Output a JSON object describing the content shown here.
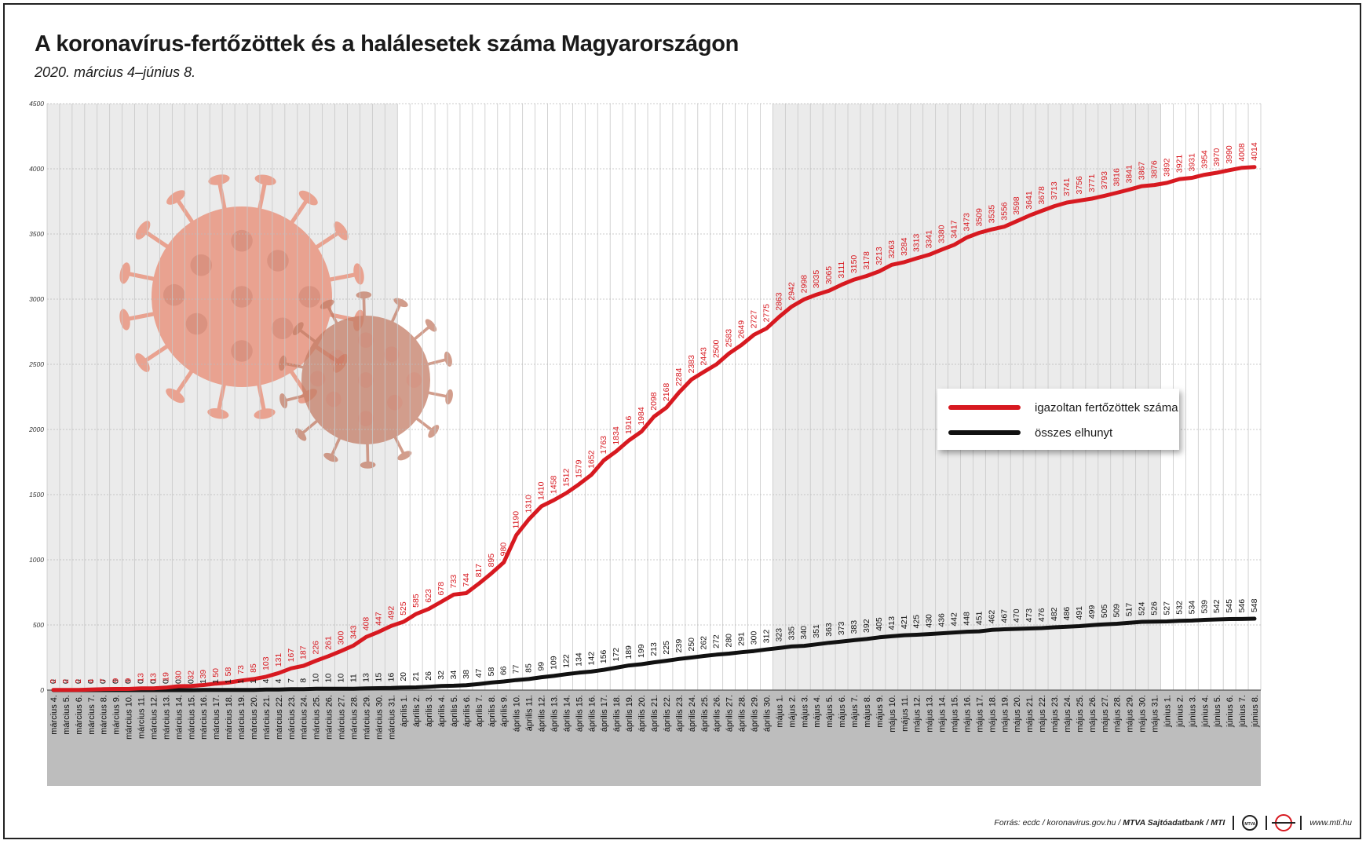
{
  "title": "A koronavírus-fertőzöttek és a halálesetek száma Magyarországon",
  "subtitle": "2020. március 4–június 8.",
  "legend": {
    "infected_label": "igazoltan fertőzöttek száma",
    "deaths_label": "összes elhunyt"
  },
  "footer": {
    "source": "Forrás: ecdc / koronavirus.gov.hu / ",
    "source_bold": "MTVA Sajtóadatbank / MTI",
    "logo1": "MTVA",
    "website": "www.mti.hu"
  },
  "colors": {
    "infected": "#d71920",
    "deaths": "#111111",
    "virus": "#e9917a",
    "shade": "#ebebeb",
    "xband": "#bdbdbd"
  },
  "chart_data": {
    "type": "line",
    "ylim": [
      0,
      4500
    ],
    "yticks": [
      "0",
      "500",
      "1000",
      "1500",
      "2000",
      "2500",
      "3000",
      "3500",
      "4000",
      "4500"
    ],
    "grid": true,
    "categories": [
      "március 4.",
      "március 5.",
      "március 6.",
      "március 7.",
      "március 8.",
      "március 9.",
      "március 10.",
      "március 11.",
      "március 12.",
      "március 13.",
      "március 14.",
      "március 15.",
      "március 16.",
      "március 17.",
      "március 18.",
      "március 19.",
      "március 20.",
      "március 21.",
      "március 22.",
      "március 23.",
      "március 24.",
      "március 25.",
      "március 26.",
      "március 27.",
      "március 28.",
      "március 29.",
      "március 30.",
      "március 31.",
      "április 1.",
      "április 2.",
      "április 3.",
      "április 4.",
      "április 5.",
      "április 6.",
      "április 7.",
      "április 8.",
      "április 9.",
      "április 10.",
      "április 11.",
      "április 12.",
      "április 13.",
      "április 14.",
      "április 15.",
      "április 16.",
      "április 17.",
      "április 18.",
      "április 19.",
      "április 20.",
      "április 21.",
      "április 22.",
      "április 23.",
      "április 24.",
      "április 25.",
      "április 26.",
      "április 27.",
      "április 28.",
      "április 29.",
      "április 30.",
      "május 1.",
      "május 2.",
      "május 3.",
      "május 4.",
      "május 5.",
      "május 6.",
      "május 7.",
      "május 8.",
      "május 9.",
      "május 10.",
      "május 11.",
      "május 12.",
      "május 13.",
      "május 14.",
      "május 15.",
      "május 16.",
      "május 17.",
      "május 18.",
      "május 19.",
      "május 20.",
      "május 21.",
      "május 22.",
      "május 23.",
      "május 24.",
      "május 25.",
      "május 26.",
      "május 27.",
      "május 28.",
      "május 29.",
      "május 30.",
      "május 31.",
      "június 1.",
      "június 2.",
      "június 3.",
      "június 4.",
      "június 5.",
      "június 6.",
      "június 7.",
      "június 8."
    ],
    "series": [
      {
        "name": "igazoltan fertőzöttek száma",
        "values": [
          2,
          2,
          2,
          4,
          7,
          9,
          9,
          13,
          13,
          19,
          30,
          32,
          39,
          50,
          58,
          73,
          85,
          103,
          131,
          167,
          187,
          226,
          261,
          300,
          343,
          408,
          447,
          492,
          525,
          585,
          623,
          678,
          733,
          744,
          817,
          895,
          980,
          1190,
          1310,
          1410,
          1458,
          1512,
          1579,
          1652,
          1763,
          1834,
          1916,
          1984,
          2098,
          2168,
          2284,
          2383,
          2443,
          2500,
          2583,
          2649,
          2727,
          2775,
          2863,
          2942,
          2998,
          3035,
          3065,
          3111,
          3150,
          3178,
          3213,
          3263,
          3284,
          3313,
          3341,
          3380,
          3417,
          3473,
          3509,
          3535,
          3556,
          3598,
          3641,
          3678,
          3713,
          3741,
          3756,
          3771,
          3793,
          3816,
          3841,
          3867,
          3876,
          3892,
          3921,
          3931,
          3954,
          3970,
          3990,
          4008,
          4014
        ]
      },
      {
        "name": "összes elhunyt",
        "values": [
          0,
          0,
          0,
          0,
          0,
          0,
          0,
          0,
          0,
          0,
          0,
          0,
          1,
          1,
          1,
          1,
          1,
          4,
          4,
          7,
          8,
          10,
          10,
          10,
          11,
          13,
          15,
          16,
          20,
          21,
          26,
          32,
          34,
          38,
          47,
          58,
          66,
          77,
          85,
          99,
          109,
          122,
          134,
          142,
          156,
          172,
          189,
          199,
          213,
          225,
          239,
          250,
          262,
          272,
          280,
          291,
          300,
          312,
          323,
          335,
          340,
          351,
          363,
          373,
          383,
          392,
          405,
          413,
          421,
          425,
          430,
          436,
          442,
          448,
          451,
          462,
          467,
          470,
          473,
          476,
          482,
          486,
          491,
          499,
          505,
          509,
          517,
          524,
          526,
          527,
          532,
          534,
          539,
          542,
          545,
          546,
          548
        ]
      }
    ]
  }
}
